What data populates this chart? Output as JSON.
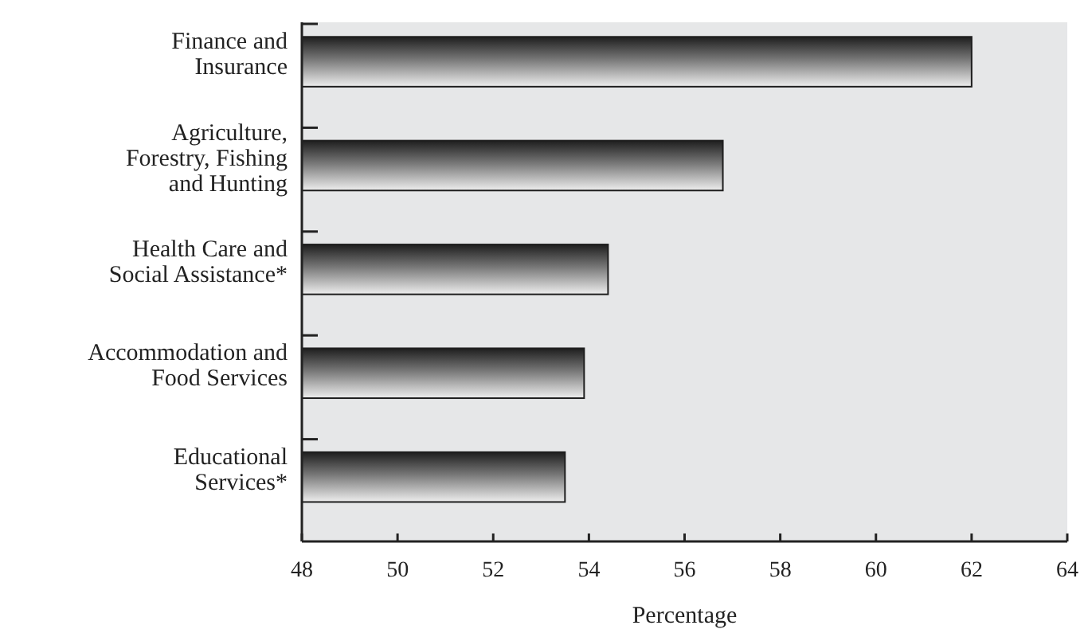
{
  "chart_data": {
    "type": "bar",
    "orientation": "horizontal",
    "xlabel": "Percentage",
    "categories": [
      "Finance and Insurance",
      "Agriculture, Forestry, Fishing and Hunting",
      "Health Care and Social Assistance*",
      "Accommodation and Food Services",
      "Educational Services*"
    ],
    "values": [
      62.0,
      56.8,
      54.4,
      53.9,
      53.5
    ],
    "color": "#1e1e1e",
    "xlim": [
      48,
      64
    ],
    "xticks": [
      48,
      50,
      52,
      54,
      56,
      58,
      60,
      62,
      64
    ],
    "grid": false
  }
}
